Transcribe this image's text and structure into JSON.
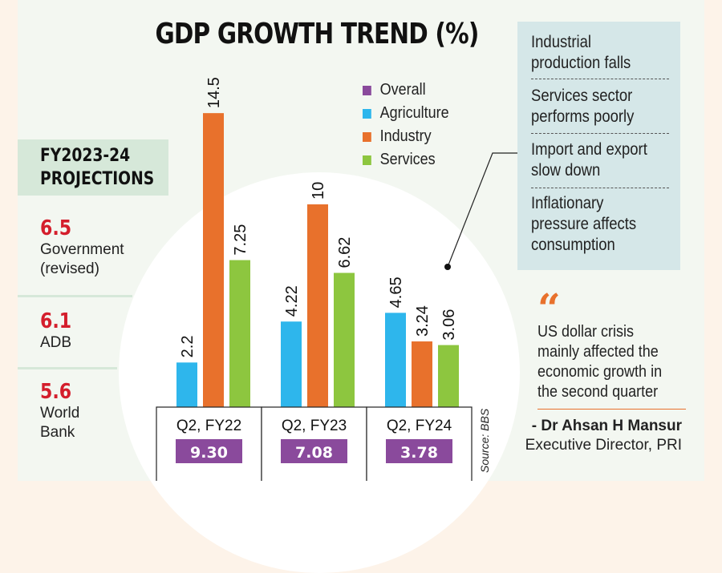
{
  "title": "GDP GROWTH TREND (%)",
  "legend": [
    {
      "label": "Overall",
      "color": "#8a4a9c"
    },
    {
      "label": "Agriculture",
      "color": "#2eb6ec"
    },
    {
      "label": "Industry",
      "color": "#e8712c"
    },
    {
      "label": "Services",
      "color": "#8dc63f"
    }
  ],
  "projections": {
    "title_line1": "FY2023-24",
    "title_line2": "PROJECTIONS",
    "items": [
      {
        "value": "6.5",
        "label_line1": "Government",
        "label_line2": "(revised)"
      },
      {
        "value": "6.1",
        "label_line1": "ADB",
        "label_line2": ""
      },
      {
        "value": "5.6",
        "label_line1": "World",
        "label_line2": "Bank"
      }
    ]
  },
  "factors": [
    {
      "line1": "Industrial",
      "line2": "production falls"
    },
    {
      "line1": "Services sector",
      "line2": "performs poorly"
    },
    {
      "line1": "Import and export",
      "line2": "slow down"
    },
    {
      "line1": "Inflationary",
      "line2": "pressure affects",
      "line3": "consumption"
    }
  ],
  "quote": {
    "mark": "“",
    "line1": "US dollar crisis",
    "line2": "mainly affected the",
    "line3": "economic growth in",
    "line4": "the second quarter",
    "author": "- Dr Ahsan H Mansur",
    "role": "Executive Director, PRI"
  },
  "source": "Source: BBS",
  "chart_data": {
    "type": "bar",
    "title": "GDP GROWTH TREND (%)",
    "xlabel": "",
    "ylabel": "",
    "categories": [
      "Q2, FY22",
      "Q2, FY23",
      "Q2, FY24"
    ],
    "series": [
      {
        "name": "Agriculture",
        "color": "#2eb6ec",
        "values": [
          2.2,
          4.22,
          4.65
        ],
        "labels": [
          "2.2",
          "4.22",
          "4.65"
        ]
      },
      {
        "name": "Industry",
        "color": "#e8712c",
        "values": [
          14.5,
          10,
          3.24
        ],
        "labels": [
          "14.5",
          "10",
          "3.24"
        ]
      },
      {
        "name": "Services",
        "color": "#8dc63f",
        "values": [
          7.25,
          6.62,
          3.06
        ],
        "labels": [
          "7.25",
          "6.62",
          "3.06"
        ]
      }
    ],
    "overall": {
      "name": "Overall",
      "color": "#8a4a9c",
      "values": [
        9.3,
        7.08,
        3.78
      ],
      "labels": [
        "9.30",
        "7.08",
        "3.78"
      ]
    },
    "ylim": [
      0,
      14.5
    ],
    "grid": false,
    "legend_position": "top-right"
  }
}
